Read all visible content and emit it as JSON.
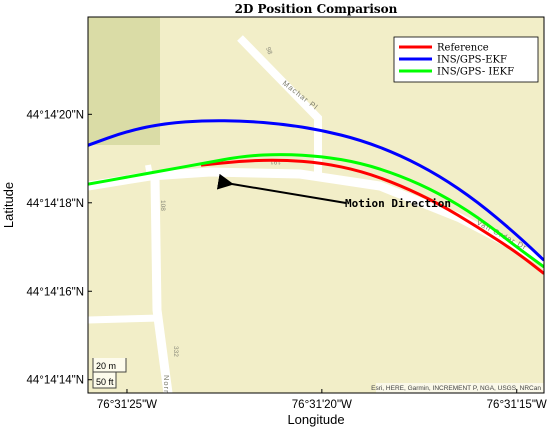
{
  "chart_data": {
    "type": "line",
    "title": "2D Position Comparison",
    "xlabel": "Longitude",
    "ylabel": "Latitude",
    "x_ticks": [
      "76°31'25\"W",
      "76°31'20\"W",
      "76°31'15\"W"
    ],
    "y_ticks": [
      "44°14'20\"N",
      "44°14'18\"N",
      "44°14'16\"N",
      "44°14'14\"N"
    ],
    "xlim_seconds_west": [
      26,
      14.3
    ],
    "ylim_seconds_north": [
      13.7,
      22.2
    ],
    "legend_position": "top-right",
    "series": [
      {
        "name": "Reference",
        "color": "#ff0000",
        "lon_seconds_west": [
          23.1,
          22.0,
          21.0,
          20.0,
          19.0,
          18.0,
          17.0,
          16.0,
          15.0,
          14.3
        ],
        "lat_seconds_north": [
          18.85,
          18.95,
          18.97,
          18.9,
          18.72,
          18.4,
          17.98,
          17.45,
          16.88,
          16.4
        ]
      },
      {
        "name": "INS/GPS-EKF",
        "color": "#0000ff",
        "lon_seconds_west": [
          26.0,
          25.0,
          24.0,
          23.0,
          22.0,
          21.0,
          20.0,
          19.0,
          18.0,
          17.0,
          16.0,
          15.0,
          14.3
        ],
        "lat_seconds_north": [
          19.3,
          19.62,
          19.8,
          19.86,
          19.85,
          19.78,
          19.64,
          19.42,
          19.08,
          18.62,
          18.02,
          17.28,
          16.7
        ]
      },
      {
        "name": "INS/GPS- IEKF",
        "color": "#00ff00",
        "lon_seconds_west": [
          26.0,
          25.0,
          24.0,
          23.1,
          22.0,
          21.0,
          20.0,
          19.0,
          18.0,
          17.0,
          16.0,
          15.0,
          14.3
        ],
        "lat_seconds_north": [
          18.42,
          18.58,
          18.74,
          18.88,
          19.06,
          19.1,
          19.05,
          18.9,
          18.62,
          18.22,
          17.68,
          17.0,
          16.55
        ]
      }
    ],
    "annotations": [
      {
        "text": "Motion Direction",
        "arrow": true
      }
    ]
  },
  "map": {
    "streets": [
      "Machar Pl",
      "Van Order Dr",
      "Norr"
    ],
    "house_numbers": [
      "98",
      "191",
      "108",
      "332"
    ],
    "scale_bar": [
      "20 m",
      "50 ft"
    ],
    "attribution": "Esri, HERE, Garmin, INCREMENT P, NGA, USGS, NRCan"
  }
}
